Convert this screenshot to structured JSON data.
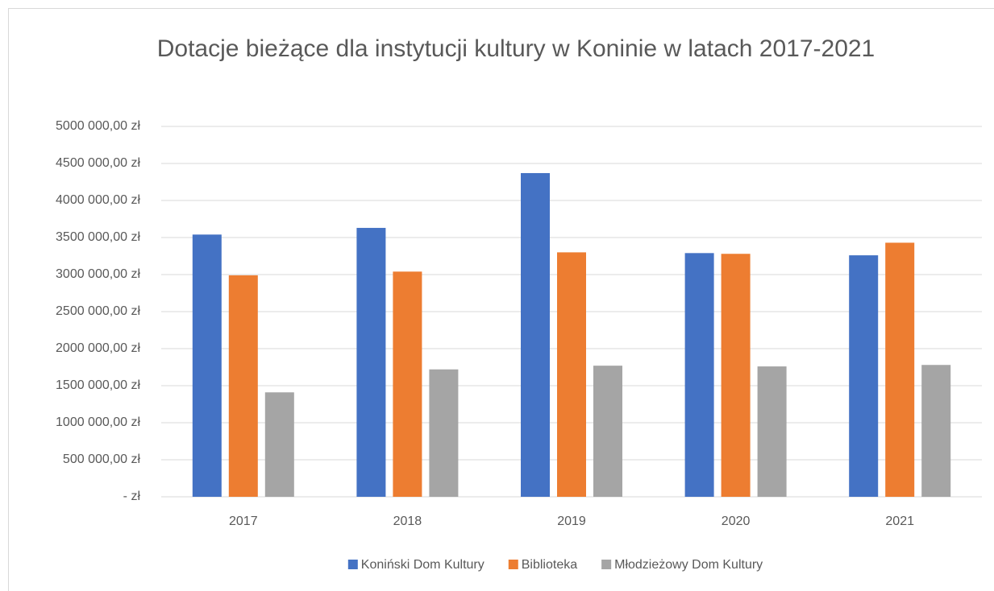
{
  "chart_data": {
    "type": "bar",
    "title": "Dotacje bieżące dla instytucji kultury w Koninie w latach 2017-2021",
    "categories": [
      "2017",
      "2018",
      "2019",
      "2020",
      "2021"
    ],
    "series": [
      {
        "name": "Koniński Dom Kultury",
        "color": "#4472c4",
        "values": [
          3540000,
          3630000,
          4370000,
          3290000,
          3260000
        ]
      },
      {
        "name": "Biblioteka",
        "color": "#ed7d31",
        "values": [
          2990000,
          3040000,
          3300000,
          3280000,
          3430000
        ]
      },
      {
        "name": "Młodzieżowy Dom Kultury",
        "color": "#a5a5a5",
        "values": [
          1410000,
          1720000,
          1770000,
          1760000,
          1780000
        ]
      }
    ],
    "ylim": [
      0,
      5000000
    ],
    "yticks": [
      {
        "value": 0,
        "label": "-   zł"
      },
      {
        "value": 500000,
        "label": "500 000,00 zł"
      },
      {
        "value": 1000000,
        "label": "1000 000,00 zł"
      },
      {
        "value": 1500000,
        "label": "1500 000,00 zł"
      },
      {
        "value": 2000000,
        "label": "2000 000,00 zł"
      },
      {
        "value": 2500000,
        "label": "2500 000,00 zł"
      },
      {
        "value": 3000000,
        "label": "3000 000,00 zł"
      },
      {
        "value": 3500000,
        "label": "3500 000,00 zł"
      },
      {
        "value": 4000000,
        "label": "4000 000,00 zł"
      },
      {
        "value": 4500000,
        "label": "4500 000,00 zł"
      },
      {
        "value": 5000000,
        "label": "5000 000,00 zł"
      }
    ],
    "grid": true,
    "legend": "bottom"
  }
}
